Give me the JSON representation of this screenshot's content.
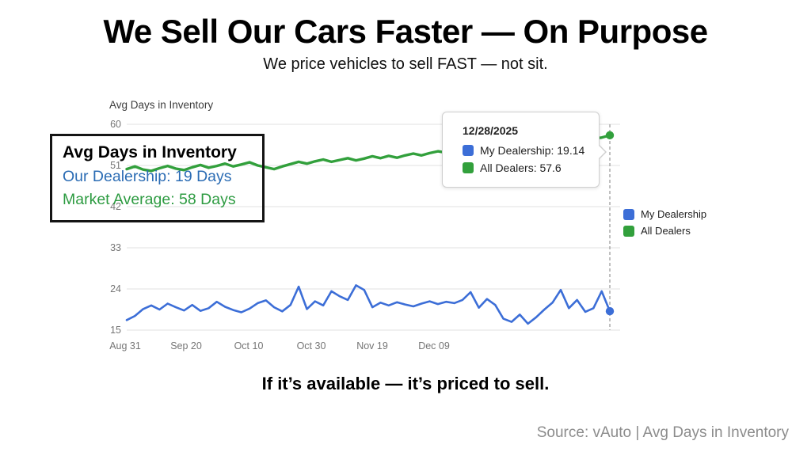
{
  "slide": {
    "title": "We Sell Our Cars Faster — On Purpose",
    "subtitle": "We price vehicles to sell FAST — not sit.",
    "tagline": "If it’s available — it’s priced to sell.",
    "source": "Source: vAuto | Avg Days in Inventory"
  },
  "overlay_box": {
    "heading": "Avg Days in Inventory",
    "line1": "Our Dealership: 19 Days",
    "line2": "Market Average: 58 Days",
    "line1_color": "#2B6CB4",
    "line2_color": "#2D9B41"
  },
  "tooltip": {
    "date": "12/28/2025",
    "items": [
      {
        "label": "My Dealership: 19.14",
        "color": "#3C6ED7"
      },
      {
        "label": "All Dealers: 57.6",
        "color": "#32A03C"
      }
    ]
  },
  "legend": {
    "items": [
      {
        "label": "My Dealership",
        "color": "#3C6ED7"
      },
      {
        "label": "All Dealers",
        "color": "#32A03C"
      }
    ]
  },
  "chart_data": {
    "type": "line",
    "title": "Avg Days in Inventory",
    "xlabel": "",
    "ylabel": "Avg Days in Inventory",
    "ylim": [
      15,
      60
    ],
    "y_ticks": [
      60,
      51,
      42,
      33,
      24,
      15
    ],
    "x_tick_labels": [
      "Aug 31",
      "Sep 20",
      "Oct 10",
      "Oct 30",
      "Nov 19",
      "Dec 09"
    ],
    "grid": true,
    "legend_position": "right",
    "crosshair": {
      "date": "12/28/2025",
      "style": "dashed"
    },
    "axis_label_color": "#757575",
    "gridline_color": "#e2e2e2",
    "crosshair_color": "#9e9e9e",
    "series": [
      {
        "name": "My Dealership",
        "color": "#3C6ED7",
        "stroke_width": 2.6,
        "end_value": 19.14,
        "values": [
          17.2,
          18.1,
          19.6,
          20.4,
          19.5,
          20.8,
          20.0,
          19.3,
          20.5,
          19.2,
          19.8,
          21.2,
          20.1,
          19.4,
          18.9,
          19.7,
          20.9,
          21.5,
          20.0,
          19.1,
          20.5,
          24.5,
          19.6,
          21.3,
          20.4,
          23.5,
          22.4,
          21.6,
          24.8,
          23.8,
          20.0,
          21.0,
          20.4,
          21.1,
          20.6,
          20.2,
          20.8,
          21.3,
          20.7,
          21.2,
          20.9,
          21.6,
          23.3,
          19.9,
          21.8,
          20.5,
          17.5,
          16.8,
          18.4,
          16.4,
          17.8,
          19.5,
          21.0,
          23.8,
          19.8,
          21.6,
          19.0,
          19.8,
          23.5,
          19.14
        ]
      },
      {
        "name": "All Dealers",
        "color": "#32A03C",
        "stroke_width": 3.4,
        "end_value": 57.6,
        "values": [
          50.2,
          50.8,
          50.1,
          49.8,
          50.4,
          50.9,
          50.3,
          50.0,
          50.6,
          51.1,
          50.5,
          50.9,
          51.4,
          50.8,
          51.2,
          51.7,
          51.0,
          50.6,
          50.2,
          50.8,
          51.3,
          51.8,
          51.4,
          51.9,
          52.3,
          51.8,
          52.2,
          52.6,
          52.1,
          52.5,
          53.0,
          52.6,
          53.1,
          52.7,
          53.2,
          53.6,
          53.2,
          53.7,
          54.1,
          53.8,
          54.2,
          54.0,
          54.4,
          54.7,
          54.5,
          54.9,
          55.2,
          55.0,
          55.4,
          55.7,
          55.5,
          55.9,
          56.2,
          56.0,
          56.4,
          56.7,
          56.5,
          56.9,
          57.1,
          57.6
        ]
      }
    ]
  }
}
